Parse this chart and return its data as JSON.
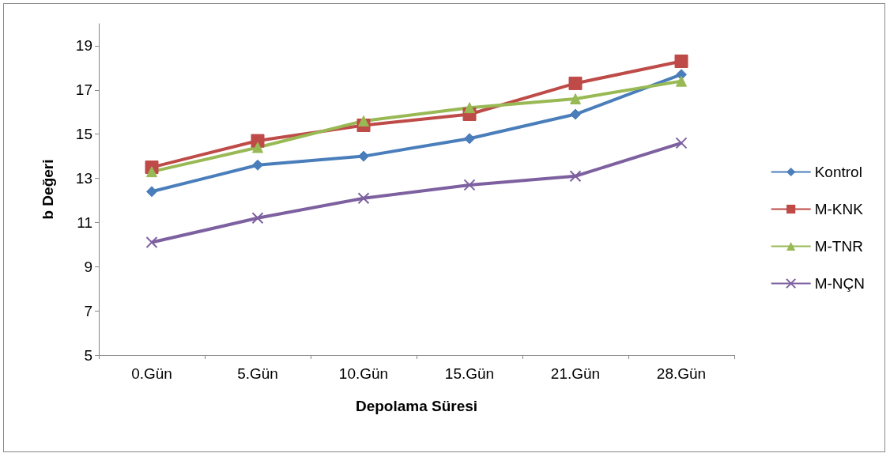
{
  "chart_data": {
    "type": "line",
    "xlabel": "Depolama Süresi",
    "ylabel": "b Değeri",
    "categories": [
      "0.Gün",
      "5.Gün",
      "10.Gün",
      "15.Gün",
      "21.Gün",
      "28.Gün"
    ],
    "series": [
      {
        "name": "Kontrol",
        "color": "#4a7ebb",
        "marker": "diamond",
        "values": [
          12.4,
          13.6,
          14.0,
          14.8,
          15.9,
          17.7
        ]
      },
      {
        "name": "M-KNK",
        "color": "#be4b48",
        "marker": "square",
        "values": [
          13.5,
          14.7,
          15.4,
          15.9,
          17.3,
          18.3
        ]
      },
      {
        "name": "M-TNR",
        "color": "#98b954",
        "marker": "triangle",
        "values": [
          13.3,
          14.4,
          15.6,
          16.2,
          16.6,
          17.4
        ]
      },
      {
        "name": "M-NÇN",
        "color": "#7d60a0",
        "marker": "cross",
        "values": [
          10.1,
          11.2,
          12.1,
          12.7,
          13.1,
          14.6
        ]
      }
    ],
    "ylim": [
      5,
      20
    ],
    "yticks": [
      5,
      7,
      9,
      11,
      13,
      15,
      17,
      19
    ],
    "grid": false,
    "legend": "right",
    "line_style": "solid"
  }
}
